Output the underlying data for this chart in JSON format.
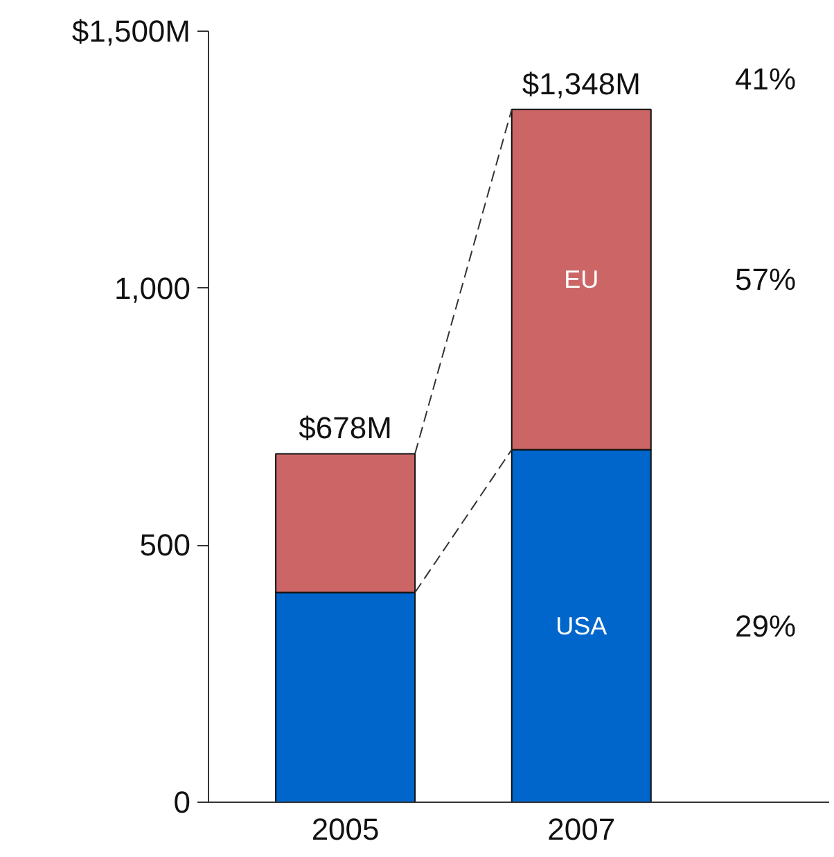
{
  "chart_data": {
    "type": "bar",
    "stacked": true,
    "categories": [
      "2005",
      "2007"
    ],
    "series": [
      {
        "name": "USA",
        "color": "#0066cc",
        "values": [
          408,
          686
        ]
      },
      {
        "name": "EU",
        "color": "#cc6666",
        "values": [
          270,
          662
        ]
      }
    ],
    "ylim": [
      0,
      1500
    ],
    "yticks": [
      0,
      500,
      {
        "value": 1000,
        "label": "1,000"
      },
      {
        "value": 1500,
        "label": "$1,500M"
      }
    ],
    "totals": [
      "$678M",
      "$1,348M"
    ],
    "annotations": [
      "41%",
      "57%",
      "29%"
    ],
    "grid": false
  }
}
